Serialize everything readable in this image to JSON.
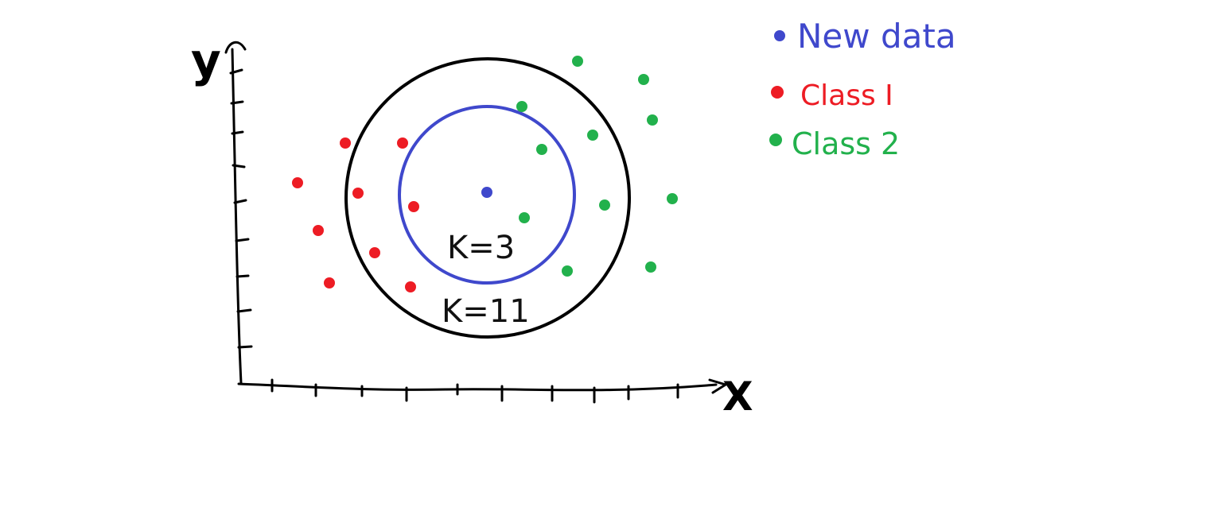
{
  "legend": {
    "new_data": {
      "label": "New data",
      "color": "#3f48cc"
    },
    "class1": {
      "label": "Class I",
      "color": "#ed1c24"
    },
    "class2": {
      "label": "Class 2",
      "color": "#22b14c"
    }
  },
  "axes": {
    "x_label": "X",
    "y_label": "y"
  },
  "circles": {
    "inner": {
      "label": "K=3",
      "color": "#3f48cc"
    },
    "outer": {
      "label": "K=11",
      "color": "#000000"
    }
  },
  "points": {
    "new_data": [
      [
        612,
        242
      ]
    ],
    "class1": [
      [
        434,
        180
      ],
      [
        506,
        180
      ],
      [
        374,
        230
      ],
      [
        450,
        243
      ],
      [
        520,
        260
      ],
      [
        400,
        290
      ],
      [
        471,
        318
      ],
      [
        414,
        356
      ],
      [
        516,
        361
      ]
    ],
    "class2": [
      [
        726,
        77
      ],
      [
        809,
        100
      ],
      [
        656,
        134
      ],
      [
        820,
        151
      ],
      [
        745,
        170
      ],
      [
        681,
        188
      ],
      [
        760,
        258
      ],
      [
        845,
        250
      ],
      [
        659,
        274
      ],
      [
        713,
        341
      ],
      [
        818,
        336
      ]
    ]
  },
  "colors": {
    "axis": "#000000"
  }
}
